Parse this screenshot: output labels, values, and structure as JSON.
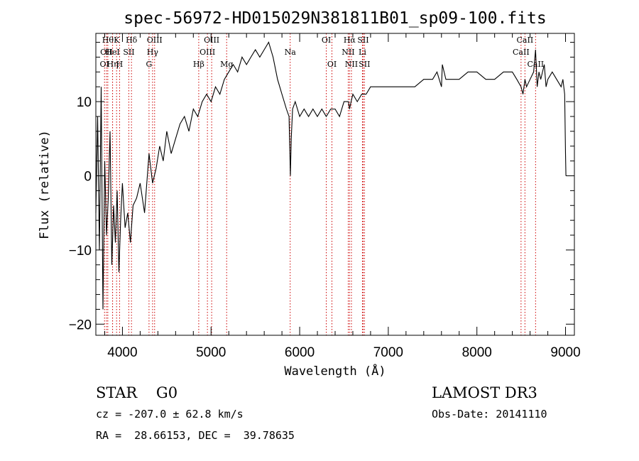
{
  "chart_data": {
    "type": "line",
    "title": "spec-56972-HD015029N381811B01_sp09-100.fits",
    "xlabel": "Wavelength (Å)",
    "ylabel": "Flux (relative)",
    "xlim": [
      3700,
      9100
    ],
    "ylim": [
      -21.5,
      19.2
    ],
    "xticks": [
      4000,
      5000,
      6000,
      7000,
      8000,
      9000
    ],
    "yticks": [
      -20,
      -10,
      0,
      10
    ],
    "grid": false,
    "series": [
      {
        "color": "#000000",
        "x": [
          3700,
          3720,
          3740,
          3760,
          3780,
          3800,
          3820,
          3840,
          3860,
          3880,
          3900,
          3920,
          3940,
          3960,
          3980,
          4000,
          4030,
          4060,
          4090,
          4120,
          4160,
          4200,
          4250,
          4300,
          4340,
          4380,
          4420,
          4460,
          4500,
          4550,
          4600,
          4650,
          4700,
          4750,
          4800,
          4850,
          4900,
          4950,
          5000,
          5050,
          5100,
          5150,
          5200,
          5250,
          5300,
          5350,
          5400,
          5450,
          5500,
          5550,
          5600,
          5650,
          5700,
          5750,
          5800,
          5850,
          5880,
          5895,
          5905,
          5920,
          5950,
          6000,
          6050,
          6100,
          6150,
          6200,
          6250,
          6300,
          6350,
          6400,
          6450,
          6500,
          6550,
          6563,
          6580,
          6600,
          6650,
          6700,
          6750,
          6800,
          6900,
          7000,
          7100,
          7200,
          7300,
          7400,
          7500,
          7550,
          7600,
          7610,
          7650,
          7700,
          7800,
          7900,
          8000,
          8100,
          8200,
          8300,
          8400,
          8450,
          8498,
          8520,
          8542,
          8560,
          8600,
          8640,
          8662,
          8680,
          8700,
          8720,
          8740,
          8760,
          8780,
          8800,
          8850,
          8900,
          8950,
          8970,
          8990,
          9000,
          9005
        ],
        "y": [
          -5,
          8,
          -10,
          12,
          -18,
          2,
          -8,
          -3,
          6,
          -12,
          -4,
          -9,
          -2,
          -13,
          -6,
          -1,
          -7,
          -5,
          -9,
          -4,
          -3,
          -1,
          -5,
          3,
          -1,
          1,
          4,
          2,
          6,
          3,
          5,
          7,
          8,
          6,
          9,
          8,
          10,
          11,
          10,
          12,
          11,
          13,
          14,
          15,
          14,
          16,
          15,
          16,
          17,
          16,
          17,
          18,
          16,
          13,
          11,
          9,
          8,
          0,
          5,
          9,
          10,
          8,
          9,
          8,
          9,
          8,
          9,
          8,
          9,
          9,
          8,
          10,
          10,
          9,
          10,
          11,
          10,
          11,
          11,
          12,
          12,
          12,
          12,
          12,
          12,
          13,
          13,
          14,
          12,
          15,
          13,
          13,
          13,
          14,
          14,
          13,
          13,
          14,
          14,
          13,
          12,
          11,
          13,
          12,
          13,
          14,
          17,
          12,
          14,
          13,
          14,
          15,
          12,
          13,
          14,
          13,
          12,
          13,
          11,
          3,
          0
        ],
        "name": ""
      }
    ],
    "lines": [
      {
        "wl": 3798,
        "label": "OI",
        "row": 2
      },
      {
        "wl": 3835,
        "label": "Hθ",
        "row": 0
      },
      {
        "wl": 3820,
        "label": "OII",
        "row": 1
      },
      {
        "wl": 3889,
        "label": "Hη",
        "row": 2
      },
      {
        "wl": 3888,
        "label": "HeI",
        "row": 1
      },
      {
        "wl": 3934,
        "label": "K",
        "row": 0
      },
      {
        "wl": 3968,
        "label": "H",
        "row": 2
      },
      {
        "wl": 4072,
        "label": "SII",
        "row": 1
      },
      {
        "wl": 4102,
        "label": "Hδ",
        "row": 0
      },
      {
        "wl": 4300,
        "label": "G",
        "row": 2
      },
      {
        "wl": 4340,
        "label": "Hγ",
        "row": 1
      },
      {
        "wl": 4363,
        "label": "OIII",
        "row": 0
      },
      {
        "wl": 4861,
        "label": "Hβ",
        "row": 2
      },
      {
        "wl": 4959,
        "label": "OIII",
        "row": 1
      },
      {
        "wl": 5007,
        "label": "OIII",
        "row": 0
      },
      {
        "wl": 5176,
        "label": "Mg",
        "row": 2
      },
      {
        "wl": 5893,
        "label": "Na",
        "row": 1
      },
      {
        "wl": 6300,
        "label": "OI",
        "row": 0
      },
      {
        "wl": 6364,
        "label": "OI",
        "row": 2
      },
      {
        "wl": 6548,
        "label": "NII",
        "row": 1
      },
      {
        "wl": 6563,
        "label": "Hα",
        "row": 0
      },
      {
        "wl": 6584,
        "label": "NII",
        "row": 2
      },
      {
        "wl": 6708,
        "label": "Li",
        "row": 1
      },
      {
        "wl": 6716,
        "label": "SII",
        "row": 0
      },
      {
        "wl": 6731,
        "label": "SII",
        "row": 2
      },
      {
        "wl": 8498,
        "label": "CaII",
        "row": 1
      },
      {
        "wl": 8542,
        "label": "CaII",
        "row": 0
      },
      {
        "wl": 8662,
        "label": "CaII",
        "row": 2
      }
    ]
  },
  "info": {
    "object": "STAR    G0",
    "cz": "cz = -207.0 ± 62.8 km/s",
    "radec": "RA =  28.66153, DEC =  39.78635",
    "survey": "LAMOST DR3",
    "obsdate": "Obs-Date: 20141110"
  },
  "colors": {
    "spectrum": "#000000",
    "line_marker": "#cc0000"
  }
}
